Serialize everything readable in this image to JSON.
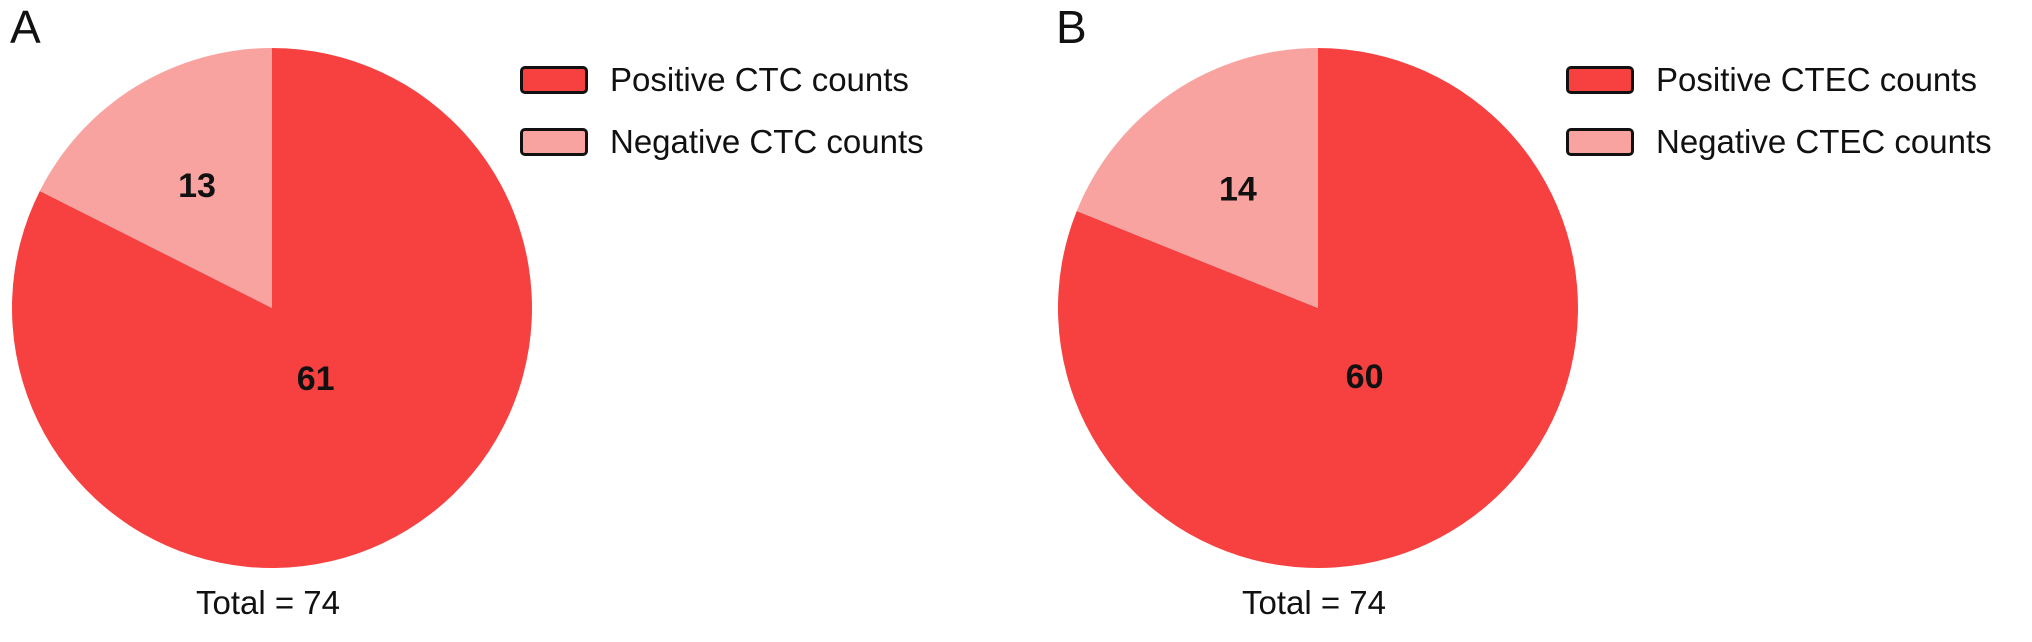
{
  "chart_data": [
    {
      "type": "pie",
      "panel_label": "A",
      "slices": [
        {
          "label": "Positive CTC counts",
          "value": 61,
          "color": "#f64140"
        },
        {
          "label": "Negative CTC counts",
          "value": 13,
          "color": "#f9a3a1"
        }
      ],
      "total_text": "Total = 74",
      "legend_position": "right"
    },
    {
      "type": "pie",
      "panel_label": "B",
      "slices": [
        {
          "label": "Positive CTEC counts",
          "value": 60,
          "color": "#f64140"
        },
        {
          "label": "Negative CTEC counts",
          "value": 14,
          "color": "#f9a3a1"
        }
      ],
      "total_text": "Total = 74",
      "legend_position": "right"
    }
  ]
}
